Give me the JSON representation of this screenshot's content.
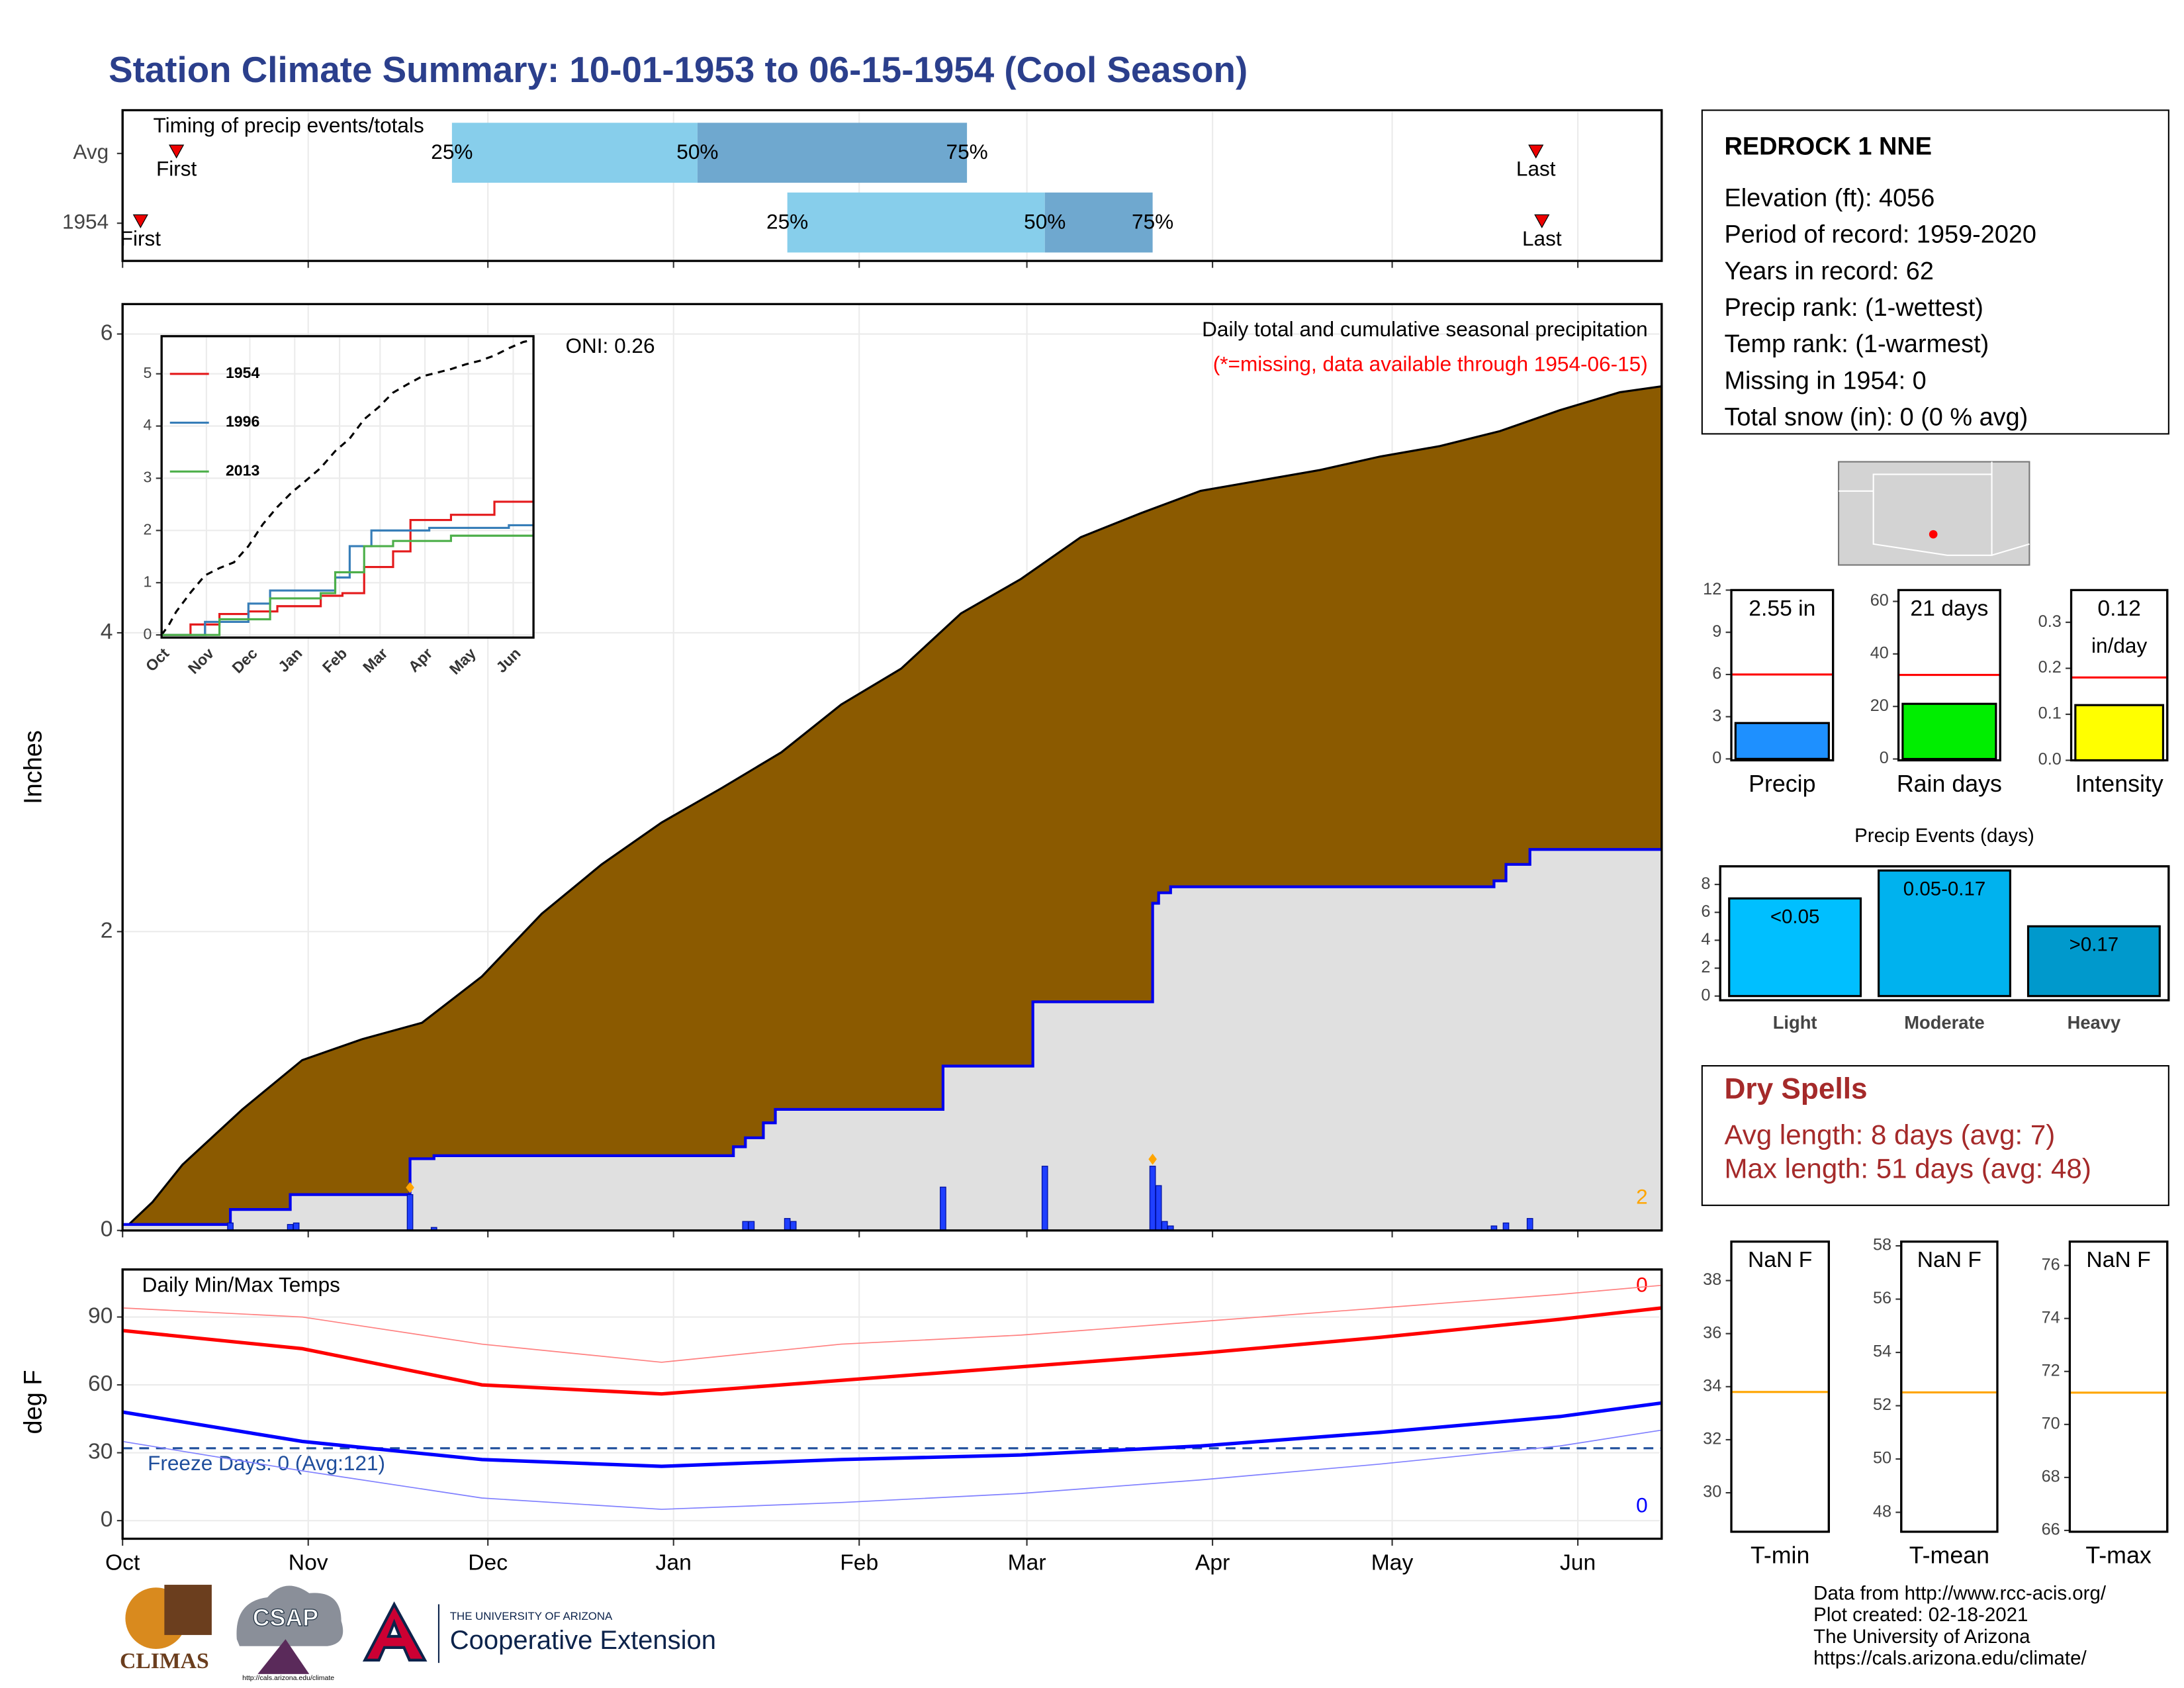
{
  "title": "Station Climate Summary: 10-01-1953 to 06-15-1954 (Cool Season)",
  "chart_data": [
    {
      "type": "timing",
      "title": "Timing of precip events/totals",
      "labels": {
        "first": "First",
        "last": "Last",
        "p25": "25%",
        "p50": "50%",
        "p75": "75%"
      },
      "rows": [
        {
          "name": "Avg",
          "first": 9,
          "p25": 55,
          "p50": 96,
          "p75": 141,
          "last": 236
        },
        {
          "name": "1954",
          "first": 3,
          "p25": 111,
          "p50": 154,
          "p75": 172,
          "last": 237
        }
      ],
      "colors": [
        "#87ceeb",
        "#6fa8cf"
      ]
    },
    {
      "type": "area",
      "ylabel": "Inches",
      "ylim": [
        0,
        6.2
      ],
      "yticks": [
        0,
        2,
        4,
        6
      ],
      "grid": true,
      "annotations": [
        "Daily total and cumulative seasonal precipitation",
        "(*=missing, data available through 1954-06-15)",
        "ONI: 0.26",
        "2"
      ],
      "series": [
        {
          "color": "#8b5a00",
          "x": [
            0,
            5,
            10,
            20,
            30,
            40,
            50,
            60,
            70,
            80,
            90,
            100,
            110,
            120,
            130,
            140,
            150,
            160,
            170,
            180,
            190,
            200,
            210,
            220,
            230,
            240,
            250,
            257
          ],
          "values": [
            0,
            0.19,
            0.44,
            0.81,
            1.14,
            1.28,
            1.39,
            1.7,
            2.12,
            2.45,
            2.73,
            2.96,
            3.2,
            3.52,
            3.76,
            4.13,
            4.36,
            4.64,
            4.8,
            4.95,
            5.02,
            5.09,
            5.18,
            5.25,
            5.35,
            5.49,
            5.61,
            5.65
          ]
        },
        {
          "color": "#0000ee",
          "fill": "#e0e0e0",
          "step": true,
          "x": [
            0,
            18,
            28,
            48,
            52,
            102,
            104,
            107,
            109,
            137,
            152,
            172,
            173,
            175,
            229,
            231,
            235,
            257
          ],
          "values": [
            0.04,
            0.14,
            0.24,
            0.48,
            0.5,
            0.56,
            0.62,
            0.72,
            0.81,
            1.1,
            1.53,
            2.19,
            2.26,
            2.3,
            2.34,
            2.45,
            2.55,
            2.55
          ]
        }
      ],
      "daily": {
        "color": "#1f3fff",
        "x": [
          18,
          28,
          29,
          48,
          52,
          104,
          105,
          111,
          112,
          137,
          154,
          172,
          173,
          174,
          175,
          229,
          231,
          235
        ],
        "values": [
          0.05,
          0.04,
          0.05,
          0.24,
          0.02,
          0.06,
          0.06,
          0.08,
          0.06,
          0.29,
          0.43,
          0.43,
          0.3,
          0.06,
          0.03,
          0.03,
          0.05,
          0.08
        ]
      },
      "flags": {
        "color": "#ffa500",
        "x": [
          48,
          172
        ]
      }
    },
    {
      "type": "line",
      "xlim": [
        0,
        257
      ],
      "ylim": [
        -0.05,
        5.72
      ],
      "yticks": [
        0,
        1,
        2,
        3,
        4,
        5
      ],
      "xticks": [
        {
          "value": 0,
          "label": "Oct"
        },
        {
          "value": 31,
          "label": "Nov"
        },
        {
          "value": 61,
          "label": "Dec"
        },
        {
          "value": 92,
          "label": "Jan"
        },
        {
          "value": 123,
          "label": "Feb"
        },
        {
          "value": 151,
          "label": "Mar"
        },
        {
          "value": 182,
          "label": "Apr"
        },
        {
          "value": 212,
          "label": "May"
        },
        {
          "value": 243,
          "label": "Jun"
        }
      ],
      "avg_color": "#000000",
      "series": [
        {
          "name": "1954",
          "color": "#e41a1c",
          "step": true,
          "x": [
            0,
            20,
            40,
            60,
            80,
            110,
            125,
            140,
            160,
            172,
            200,
            230,
            257
          ],
          "values": [
            0,
            0.2,
            0.4,
            0.45,
            0.55,
            0.75,
            0.8,
            1.3,
            1.6,
            2.2,
            2.3,
            2.55,
            2.55
          ]
        },
        {
          "name": "1996",
          "color": "#377eb8",
          "step": true,
          "x": [
            0,
            30,
            60,
            75,
            100,
            120,
            130,
            145,
            185,
            240,
            257
          ],
          "values": [
            0,
            0.25,
            0.6,
            0.85,
            0.85,
            1.1,
            1.7,
            2,
            2.05,
            2.1,
            2.1
          ]
        },
        {
          "name": "2013",
          "color": "#4daf4a",
          "step": true,
          "x": [
            0,
            40,
            75,
            110,
            120,
            140,
            160,
            200,
            257
          ],
          "values": [
            0,
            0.3,
            0.7,
            0.8,
            1.2,
            1.7,
            1.8,
            1.9,
            1.9
          ]
        }
      ]
    },
    {
      "type": "line",
      "title": "Daily Min/Max Temps",
      "ylabel": "deg F",
      "xlim": [
        0,
        257
      ],
      "ylim": [
        -8,
        111
      ],
      "yticks": [
        0,
        30,
        60,
        90
      ],
      "grid": true,
      "xticks": [
        {
          "value": 0,
          "label": "Oct"
        },
        {
          "value": 31,
          "label": "Nov"
        },
        {
          "value": 61,
          "label": "Dec"
        },
        {
          "value": 92,
          "label": "Jan"
        },
        {
          "value": 123,
          "label": "Feb"
        },
        {
          "value": 151,
          "label": "Mar"
        },
        {
          "value": 182,
          "label": "Apr"
        },
        {
          "value": 212,
          "label": "May"
        },
        {
          "value": 243,
          "label": "Jun"
        }
      ],
      "freeze": {
        "value": 32,
        "label": "Freeze Days: 0 (Avg:121)",
        "color": "#1f4e9c"
      },
      "annotations": [
        "0",
        "0"
      ],
      "series": [
        {
          "color": "#ff8080",
          "width": 0.8,
          "x": [
            0,
            30,
            60,
            90,
            120,
            150,
            180,
            210,
            240,
            257
          ],
          "values": [
            94,
            90,
            78,
            70,
            78,
            82,
            88,
            94,
            100,
            104
          ]
        },
        {
          "color": "#ff0000",
          "width": 2.5,
          "x": [
            0,
            30,
            60,
            90,
            120,
            150,
            180,
            210,
            240,
            257
          ],
          "values": [
            84,
            76,
            60,
            56,
            62,
            68,
            74,
            81,
            89,
            94
          ]
        },
        {
          "color": "#0000ff",
          "width": 2.5,
          "x": [
            0,
            30,
            60,
            90,
            120,
            150,
            180,
            210,
            240,
            257
          ],
          "values": [
            48,
            35,
            27,
            24,
            27,
            29,
            33,
            39,
            46,
            52
          ]
        },
        {
          "color": "#8080ff",
          "width": 0.8,
          "x": [
            0,
            30,
            60,
            90,
            120,
            150,
            180,
            210,
            240,
            257
          ],
          "values": [
            35,
            22,
            10,
            5,
            8,
            12,
            18,
            25,
            33,
            40
          ]
        }
      ]
    },
    {
      "type": "bar",
      "categories": [
        "Precip"
      ],
      "values": [
        2.55
      ],
      "value_labels": [
        "2.55 in"
      ],
      "avg": 6,
      "colors": [
        "#1e90ff"
      ],
      "ylim": [
        -0.1,
        12
      ],
      "yticks": [
        0,
        3,
        6,
        9,
        12
      ]
    },
    {
      "type": "bar",
      "categories": [
        "Rain days"
      ],
      "values": [
        21
      ],
      "value_labels": [
        "21 days"
      ],
      "avg": 32,
      "colors": [
        "#00ee00"
      ],
      "ylim": [
        -0.5,
        64.3
      ],
      "yticks": [
        0,
        20,
        40,
        60
      ]
    },
    {
      "type": "bar",
      "categories": [
        "Intensity"
      ],
      "values": [
        0.12
      ],
      "value_labels": [
        "0.12"
      ],
      "unit_label": "in/day",
      "avg": 0.18,
      "colors": [
        "#ffff00"
      ],
      "ylim": [
        0,
        0.37
      ],
      "yticks": [
        {
          "value": 0,
          "label": "0.0"
        },
        0.1,
        0.2,
        0.3
      ]
    },
    {
      "type": "bar",
      "title": "Precip Events (days)",
      "categories": [
        "Light",
        "Moderate",
        "Heavy"
      ],
      "values": [
        7,
        9,
        5
      ],
      "ranges": [
        "<0.05",
        "0.05-0.17",
        ">0.17"
      ],
      "colors": [
        "#00bfff",
        "#00b2ee",
        "#0099cc"
      ],
      "ylim": [
        -0.3,
        9.3
      ],
      "yticks": [
        0,
        2,
        4,
        6,
        8
      ]
    },
    {
      "type": "bar",
      "categories": [
        "T-min"
      ],
      "values": [
        null
      ],
      "value_labels": [
        "NaN F"
      ],
      "avg": 33.8,
      "avg_color": "#ffa500",
      "ylim": [
        28.53,
        39.47
      ],
      "yticks": [
        30,
        32,
        34,
        36,
        38
      ]
    },
    {
      "type": "bar",
      "categories": [
        "T-mean"
      ],
      "values": [
        null
      ],
      "value_labels": [
        "NaN F"
      ],
      "avg": 52.5,
      "avg_color": "#ffa500",
      "ylim": [
        47.27,
        58.16
      ],
      "yticks": [
        48,
        50,
        52,
        54,
        56,
        58
      ]
    },
    {
      "type": "bar",
      "categories": [
        "T-max"
      ],
      "values": [
        null
      ],
      "value_labels": [
        "NaN F"
      ],
      "avg": 71.2,
      "avg_color": "#ffa500",
      "ylim": [
        65.95,
        76.9
      ],
      "yticks": [
        66,
        68,
        70,
        72,
        74,
        76
      ]
    }
  ],
  "station": {
    "name": "REDROCK 1 NNE",
    "lines": [
      "Elevation (ft): 4056",
      "Period of record: 1959-2020",
      "Years in record: 62",
      "Precip rank:  (1-wettest)",
      "Temp rank:  (1-warmest)",
      "Missing in 1954: 0",
      "Total snow (in): 0 (0 % avg)"
    ]
  },
  "dry_spells": {
    "title": "Dry Spells",
    "lines": [
      "Avg length: 8 days (avg: 7)",
      "Max length: 51 days (avg: 48)"
    ]
  },
  "credits": [
    "Data from http://www.rcc-acis.org/",
    "Plot created: 02-18-2021",
    "The University of Arizona",
    "https://cals.arizona.edu/climate/"
  ],
  "logos": [
    "CLIMAS",
    "CSAP",
    "http://cals.arizona.edu/climate",
    "THE UNIVERSITY OF ARIZONA",
    "Cooperative Extension"
  ]
}
